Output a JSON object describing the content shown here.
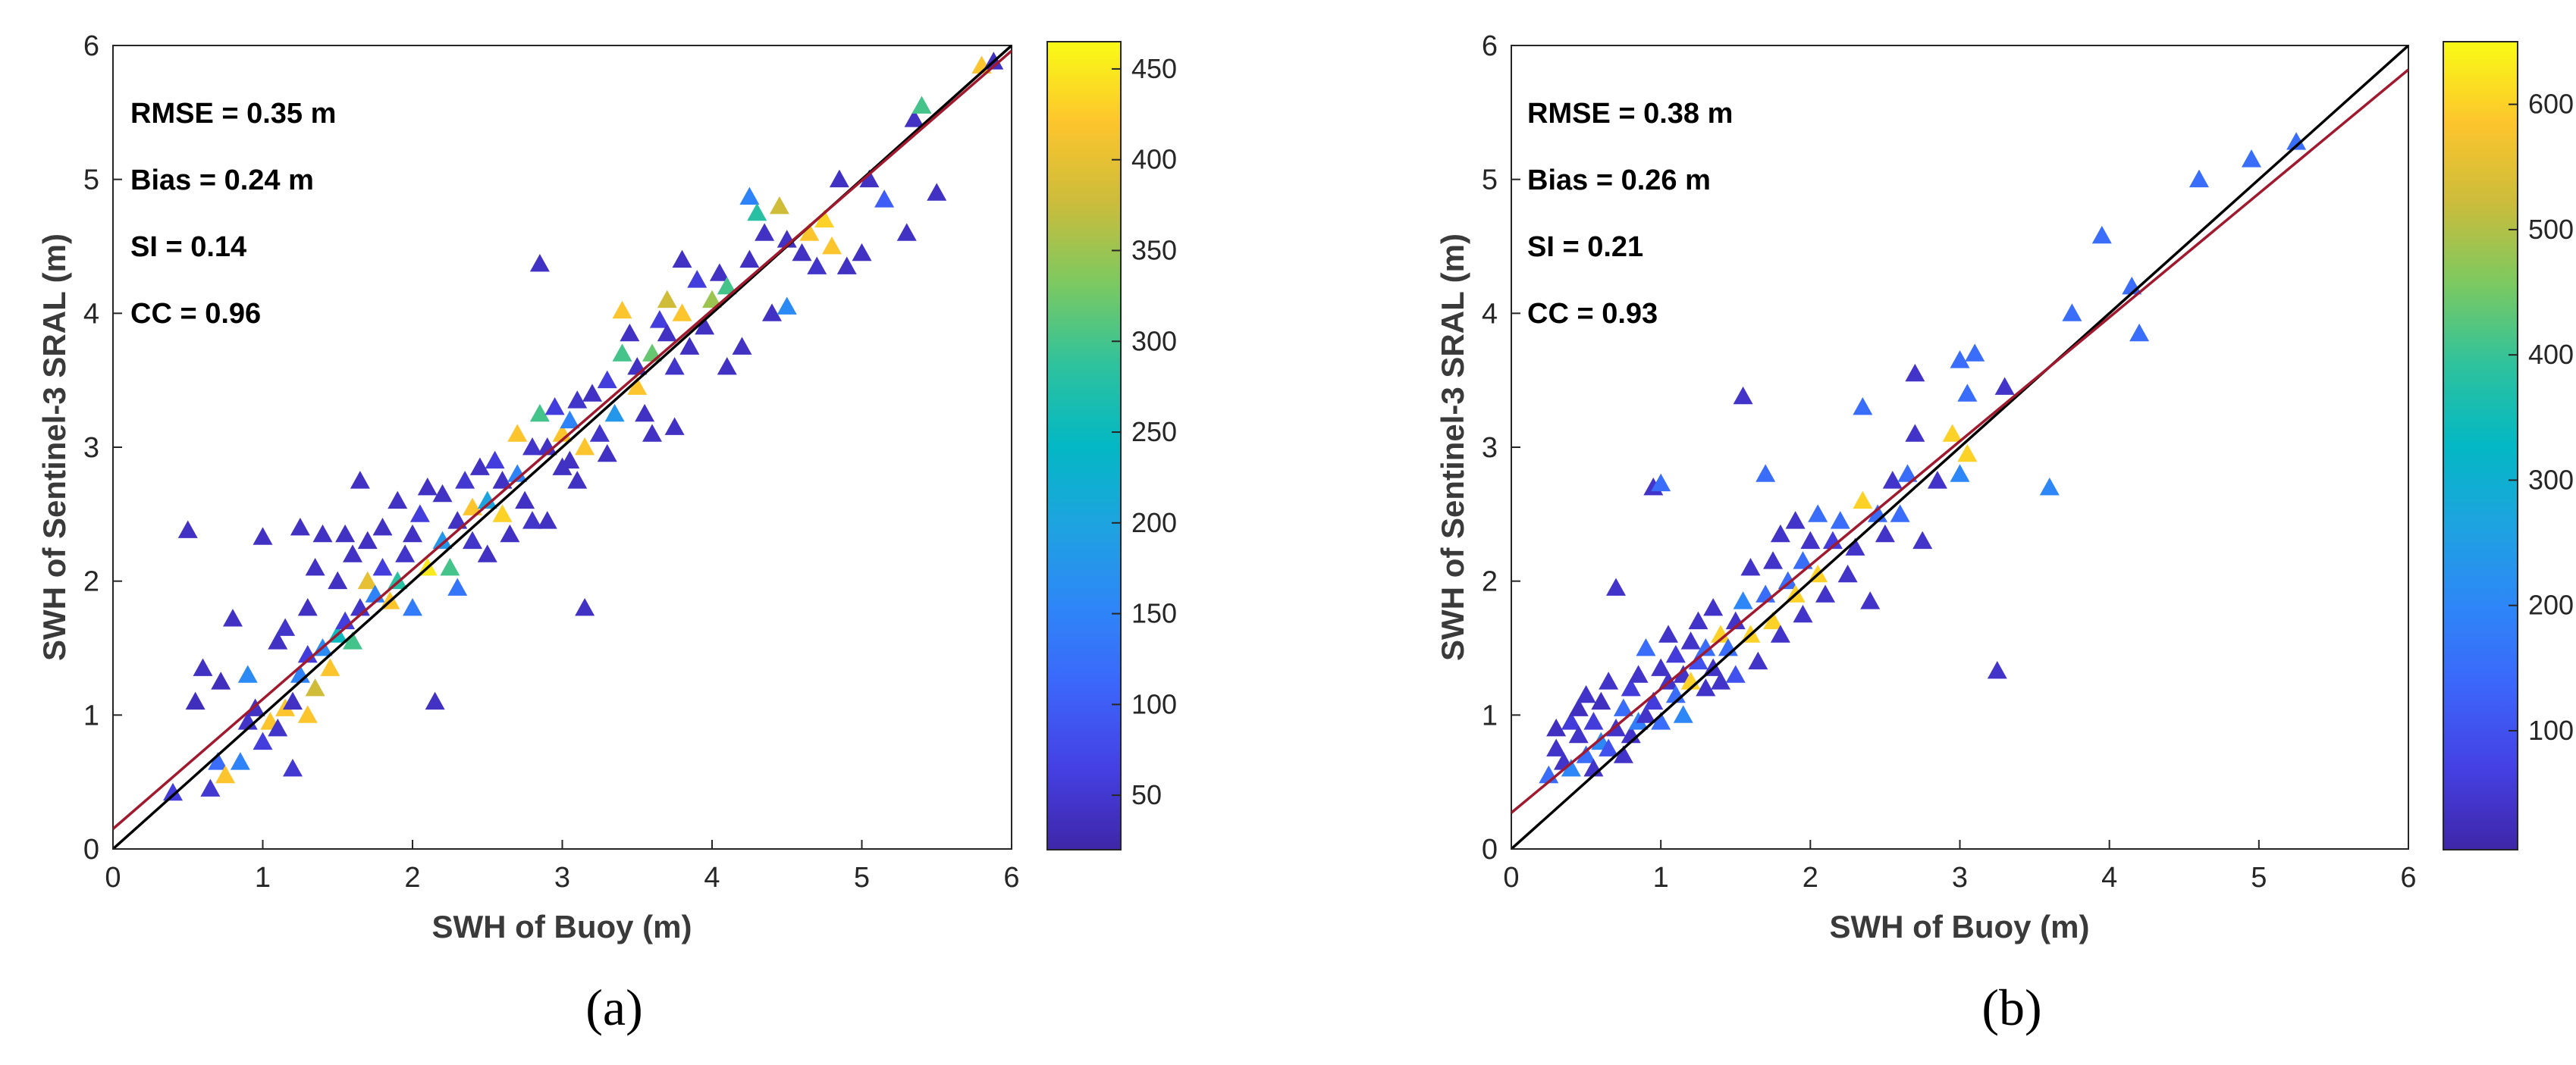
{
  "chart_data": [
    {
      "type": "scatter",
      "panel_label": "(a)",
      "xlabel": "SWH of Buoy (m)",
      "ylabel": "SWH of Sentinel-3 SRAL (m)",
      "xlim": [
        0,
        6
      ],
      "ylim": [
        0,
        6
      ],
      "xticks": [
        "0",
        "1",
        "2",
        "3",
        "4",
        "5",
        "6"
      ],
      "yticks": [
        "0",
        "1",
        "2",
        "3",
        "4",
        "5",
        "6"
      ],
      "marker": "triangle",
      "stats": [
        "RMSE = 0.35 m",
        "Bias = 0.24 m",
        "SI = 0.14",
        "CC = 0.96"
      ],
      "lines": [
        {
          "name": "1:1 line",
          "color": "#000000",
          "x": [
            0,
            6
          ],
          "y": [
            0,
            6
          ]
        },
        {
          "name": "fit",
          "color": "#a0192e",
          "x": [
            0,
            6
          ],
          "y": [
            0.15,
            5.96
          ]
        }
      ],
      "colorbar": {
        "min": 20,
        "max": 465,
        "ticks": [
          50,
          100,
          150,
          200,
          250,
          300,
          350,
          400,
          450
        ]
      },
      "points": [
        [
          0.4,
          0.42,
          60
        ],
        [
          0.5,
          2.38,
          40
        ],
        [
          0.55,
          1.1,
          35
        ],
        [
          0.6,
          1.35,
          40
        ],
        [
          0.65,
          0.45,
          50
        ],
        [
          0.7,
          0.65,
          120
        ],
        [
          0.72,
          1.25,
          35
        ],
        [
          0.75,
          0.55,
          420
        ],
        [
          0.8,
          1.72,
          40
        ],
        [
          0.85,
          0.65,
          150
        ],
        [
          0.9,
          0.95,
          45
        ],
        [
          0.9,
          1.3,
          160
        ],
        [
          0.95,
          1.05,
          40
        ],
        [
          1.0,
          2.33,
          40
        ],
        [
          1.0,
          0.8,
          60
        ],
        [
          1.05,
          0.95,
          420
        ],
        [
          1.1,
          1.55,
          40
        ],
        [
          1.1,
          0.9,
          45
        ],
        [
          1.15,
          1.65,
          45
        ],
        [
          1.15,
          1.05,
          420
        ],
        [
          1.2,
          1.1,
          40
        ],
        [
          1.2,
          0.6,
          50
        ],
        [
          1.25,
          2.4,
          40
        ],
        [
          1.25,
          1.3,
          150
        ],
        [
          1.3,
          1.0,
          420
        ],
        [
          1.3,
          1.45,
          60
        ],
        [
          1.3,
          1.8,
          40
        ],
        [
          1.35,
          1.2,
          380
        ],
        [
          1.35,
          2.1,
          40
        ],
        [
          1.4,
          2.35,
          40
        ],
        [
          1.4,
          1.5,
          160
        ],
        [
          1.45,
          1.35,
          420
        ],
        [
          1.5,
          1.6,
          250
        ],
        [
          1.5,
          2.0,
          40
        ],
        [
          1.55,
          1.7,
          60
        ],
        [
          1.55,
          2.35,
          40
        ],
        [
          1.6,
          1.55,
          300
        ],
        [
          1.6,
          2.2,
          40
        ],
        [
          1.65,
          1.8,
          45
        ],
        [
          1.65,
          2.75,
          40
        ],
        [
          1.7,
          2.0,
          400
        ],
        [
          1.7,
          2.3,
          40
        ],
        [
          1.75,
          1.9,
          150
        ],
        [
          1.8,
          2.1,
          60
        ],
        [
          1.8,
          2.4,
          40
        ],
        [
          1.85,
          1.85,
          420
        ],
        [
          1.9,
          2.6,
          40
        ],
        [
          1.9,
          2.0,
          280
        ],
        [
          1.95,
          2.2,
          45
        ],
        [
          2.0,
          1.8,
          140
        ],
        [
          2.0,
          2.35,
          40
        ],
        [
          2.05,
          2.5,
          60
        ],
        [
          2.1,
          2.1,
          450
        ],
        [
          2.1,
          2.7,
          40
        ],
        [
          2.15,
          1.1,
          40
        ],
        [
          2.2,
          2.3,
          180
        ],
        [
          2.2,
          2.65,
          40
        ],
        [
          2.25,
          2.1,
          300
        ],
        [
          2.3,
          2.45,
          40
        ],
        [
          2.3,
          1.95,
          130
        ],
        [
          2.35,
          2.75,
          50
        ],
        [
          2.4,
          2.55,
          420
        ],
        [
          2.4,
          2.3,
          45
        ],
        [
          2.45,
          2.85,
          40
        ],
        [
          2.5,
          2.6,
          200
        ],
        [
          2.5,
          2.2,
          40
        ],
        [
          2.55,
          2.9,
          60
        ],
        [
          2.6,
          2.5,
          430
        ],
        [
          2.6,
          2.75,
          40
        ],
        [
          2.65,
          2.35,
          40
        ],
        [
          2.7,
          3.1,
          420
        ],
        [
          2.7,
          2.8,
          150
        ],
        [
          2.75,
          2.6,
          40
        ],
        [
          2.8,
          3.0,
          45
        ],
        [
          2.8,
          2.45,
          45
        ],
        [
          2.85,
          3.25,
          300
        ],
        [
          2.85,
          4.37,
          40
        ],
        [
          2.9,
          3.0,
          40
        ],
        [
          2.9,
          2.45,
          40
        ],
        [
          2.95,
          3.3,
          60
        ],
        [
          3.0,
          3.1,
          420
        ],
        [
          3.0,
          2.85,
          40
        ],
        [
          3.05,
          3.2,
          150
        ],
        [
          3.05,
          2.9,
          40
        ],
        [
          3.1,
          3.35,
          45
        ],
        [
          3.1,
          2.75,
          40
        ],
        [
          3.15,
          1.8,
          40
        ],
        [
          3.15,
          3.0,
          420
        ],
        [
          3.2,
          3.4,
          40
        ],
        [
          3.25,
          3.1,
          45
        ],
        [
          3.3,
          3.5,
          60
        ],
        [
          3.3,
          2.95,
          40
        ],
        [
          3.35,
          3.25,
          180
        ],
        [
          3.4,
          4.02,
          420
        ],
        [
          3.4,
          3.7,
          300
        ],
        [
          3.45,
          3.85,
          40
        ],
        [
          3.5,
          3.45,
          420
        ],
        [
          3.5,
          3.6,
          40
        ],
        [
          3.55,
          3.25,
          40
        ],
        [
          3.6,
          3.7,
          320
        ],
        [
          3.6,
          3.1,
          40
        ],
        [
          3.65,
          3.95,
          60
        ],
        [
          3.7,
          3.85,
          40
        ],
        [
          3.7,
          4.1,
          380
        ],
        [
          3.75,
          3.6,
          45
        ],
        [
          3.75,
          3.15,
          40
        ],
        [
          3.8,
          4.0,
          420
        ],
        [
          3.8,
          4.4,
          40
        ],
        [
          3.85,
          3.75,
          40
        ],
        [
          3.9,
          4.25,
          60
        ],
        [
          3.95,
          3.9,
          40
        ],
        [
          4.0,
          4.1,
          350
        ],
        [
          4.05,
          4.3,
          40
        ],
        [
          4.1,
          3.6,
          40
        ],
        [
          4.1,
          4.2,
          300
        ],
        [
          4.2,
          3.75,
          40
        ],
        [
          4.25,
          4.4,
          40
        ],
        [
          4.25,
          4.87,
          150
        ],
        [
          4.3,
          4.75,
          280
        ],
        [
          4.35,
          4.6,
          40
        ],
        [
          4.4,
          4.0,
          40
        ],
        [
          4.45,
          4.8,
          380
        ],
        [
          4.5,
          4.05,
          160
        ],
        [
          4.5,
          4.55,
          40
        ],
        [
          4.6,
          4.45,
          40
        ],
        [
          4.65,
          4.6,
          420
        ],
        [
          4.7,
          4.35,
          45
        ],
        [
          4.75,
          4.7,
          430
        ],
        [
          4.8,
          4.5,
          420
        ],
        [
          4.85,
          5.0,
          40
        ],
        [
          4.9,
          4.35,
          40
        ],
        [
          5.0,
          4.45,
          40
        ],
        [
          5.05,
          5.0,
          40
        ],
        [
          5.15,
          4.85,
          100
        ],
        [
          5.3,
          4.6,
          40
        ],
        [
          5.35,
          5.45,
          40
        ],
        [
          5.4,
          5.55,
          300
        ],
        [
          5.5,
          4.9,
          40
        ],
        [
          5.8,
          5.85,
          420
        ],
        [
          5.88,
          5.88,
          40
        ]
      ]
    },
    {
      "type": "scatter",
      "panel_label": "(b)",
      "xlabel": "SWH of Buoy (m)",
      "ylabel": "SWH of Sentinel-3 SRAL (m)",
      "xlim": [
        0,
        6
      ],
      "ylim": [
        0,
        6
      ],
      "xticks": [
        "0",
        "1",
        "2",
        "3",
        "4",
        "5",
        "6"
      ],
      "yticks": [
        "0",
        "1",
        "2",
        "3",
        "4",
        "5",
        "6"
      ],
      "marker": "triangle",
      "stats": [
        "RMSE = 0.38 m",
        "Bias = 0.26 m",
        "SI = 0.21",
        "CC = 0.93"
      ],
      "lines": [
        {
          "name": "1:1 line",
          "color": "#000000",
          "x": [
            0,
            6
          ],
          "y": [
            0,
            6
          ]
        },
        {
          "name": "fit",
          "color": "#a0192e",
          "x": [
            0,
            6
          ],
          "y": [
            0.27,
            5.82
          ]
        }
      ],
      "colorbar": {
        "min": 5,
        "max": 650,
        "ticks": [
          100,
          200,
          300,
          400,
          500,
          600
        ]
      },
      "points": [
        [
          0.25,
          0.55,
          150
        ],
        [
          0.3,
          0.75,
          40
        ],
        [
          0.3,
          0.9,
          30
        ],
        [
          0.35,
          0.65,
          40
        ],
        [
          0.4,
          0.95,
          60
        ],
        [
          0.4,
          0.6,
          200
        ],
        [
          0.45,
          0.85,
          40
        ],
        [
          0.45,
          1.05,
          30
        ],
        [
          0.5,
          0.7,
          150
        ],
        [
          0.5,
          1.15,
          40
        ],
        [
          0.55,
          0.95,
          60
        ],
        [
          0.55,
          0.6,
          40
        ],
        [
          0.6,
          1.1,
          30
        ],
        [
          0.6,
          0.8,
          200
        ],
        [
          0.65,
          0.75,
          100
        ],
        [
          0.65,
          1.25,
          40
        ],
        [
          0.7,
          0.9,
          40
        ],
        [
          0.7,
          1.95,
          40
        ],
        [
          0.75,
          1.05,
          150
        ],
        [
          0.75,
          0.7,
          40
        ],
        [
          0.8,
          1.2,
          60
        ],
        [
          0.8,
          0.85,
          40
        ],
        [
          0.85,
          1.3,
          40
        ],
        [
          0.85,
          0.95,
          180
        ],
        [
          0.9,
          1.0,
          40
        ],
        [
          0.9,
          1.5,
          150
        ],
        [
          0.95,
          1.1,
          60
        ],
        [
          0.95,
          2.7,
          40
        ],
        [
          1.0,
          2.73,
          150
        ],
        [
          1.0,
          1.35,
          40
        ],
        [
          1.0,
          0.95,
          150
        ],
        [
          1.05,
          1.25,
          40
        ],
        [
          1.05,
          1.6,
          40
        ],
        [
          1.1,
          1.15,
          150
        ],
        [
          1.1,
          1.45,
          60
        ],
        [
          1.15,
          1.3,
          40
        ],
        [
          1.15,
          1.0,
          200
        ],
        [
          1.2,
          1.55,
          40
        ],
        [
          1.2,
          1.25,
          600
        ],
        [
          1.25,
          1.4,
          100
        ],
        [
          1.25,
          1.7,
          40
        ],
        [
          1.3,
          1.2,
          40
        ],
        [
          1.3,
          1.5,
          150
        ],
        [
          1.35,
          1.35,
          40
        ],
        [
          1.35,
          1.8,
          40
        ],
        [
          1.4,
          1.6,
          600
        ],
        [
          1.4,
          1.25,
          40
        ],
        [
          1.45,
          1.5,
          150
        ],
        [
          1.5,
          1.7,
          40
        ],
        [
          1.5,
          1.3,
          100
        ],
        [
          1.55,
          3.38,
          40
        ],
        [
          1.55,
          1.85,
          200
        ],
        [
          1.6,
          1.6,
          600
        ],
        [
          1.6,
          2.1,
          40
        ],
        [
          1.65,
          1.4,
          40
        ],
        [
          1.7,
          1.9,
          150
        ],
        [
          1.7,
          2.8,
          150
        ],
        [
          1.75,
          1.7,
          600
        ],
        [
          1.75,
          2.15,
          40
        ],
        [
          1.8,
          2.35,
          40
        ],
        [
          1.8,
          1.6,
          40
        ],
        [
          1.85,
          2.0,
          150
        ],
        [
          1.9,
          1.9,
          600
        ],
        [
          1.9,
          2.45,
          40
        ],
        [
          1.95,
          2.15,
          150
        ],
        [
          1.95,
          1.75,
          40
        ],
        [
          2.0,
          2.3,
          40
        ],
        [
          2.05,
          2.05,
          600
        ],
        [
          2.05,
          2.5,
          150
        ],
        [
          2.1,
          1.9,
          40
        ],
        [
          2.15,
          2.3,
          60
        ],
        [
          2.2,
          2.45,
          150
        ],
        [
          2.25,
          2.05,
          40
        ],
        [
          2.3,
          2.25,
          40
        ],
        [
          2.35,
          2.6,
          600
        ],
        [
          2.35,
          3.3,
          150
        ],
        [
          2.4,
          1.85,
          40
        ],
        [
          2.45,
          2.5,
          150
        ],
        [
          2.5,
          2.35,
          40
        ],
        [
          2.55,
          2.75,
          40
        ],
        [
          2.6,
          2.5,
          150
        ],
        [
          2.65,
          2.8,
          150
        ],
        [
          2.7,
          3.55,
          40
        ],
        [
          2.7,
          3.1,
          40
        ],
        [
          2.75,
          2.3,
          40
        ],
        [
          2.85,
          2.75,
          40
        ],
        [
          2.95,
          3.1,
          600
        ],
        [
          3.0,
          2.8,
          200
        ],
        [
          3.0,
          3.65,
          150
        ],
        [
          3.05,
          3.4,
          150
        ],
        [
          3.05,
          2.95,
          600
        ],
        [
          3.1,
          3.7,
          150
        ],
        [
          3.25,
          1.33,
          40
        ],
        [
          3.3,
          3.45,
          40
        ],
        [
          3.6,
          2.7,
          200
        ],
        [
          3.75,
          4.0,
          150
        ],
        [
          3.95,
          4.58,
          150
        ],
        [
          4.15,
          4.2,
          150
        ],
        [
          4.2,
          3.85,
          150
        ],
        [
          4.6,
          5.0,
          150
        ],
        [
          4.95,
          5.15,
          150
        ],
        [
          5.25,
          5.28,
          150
        ]
      ]
    }
  ]
}
